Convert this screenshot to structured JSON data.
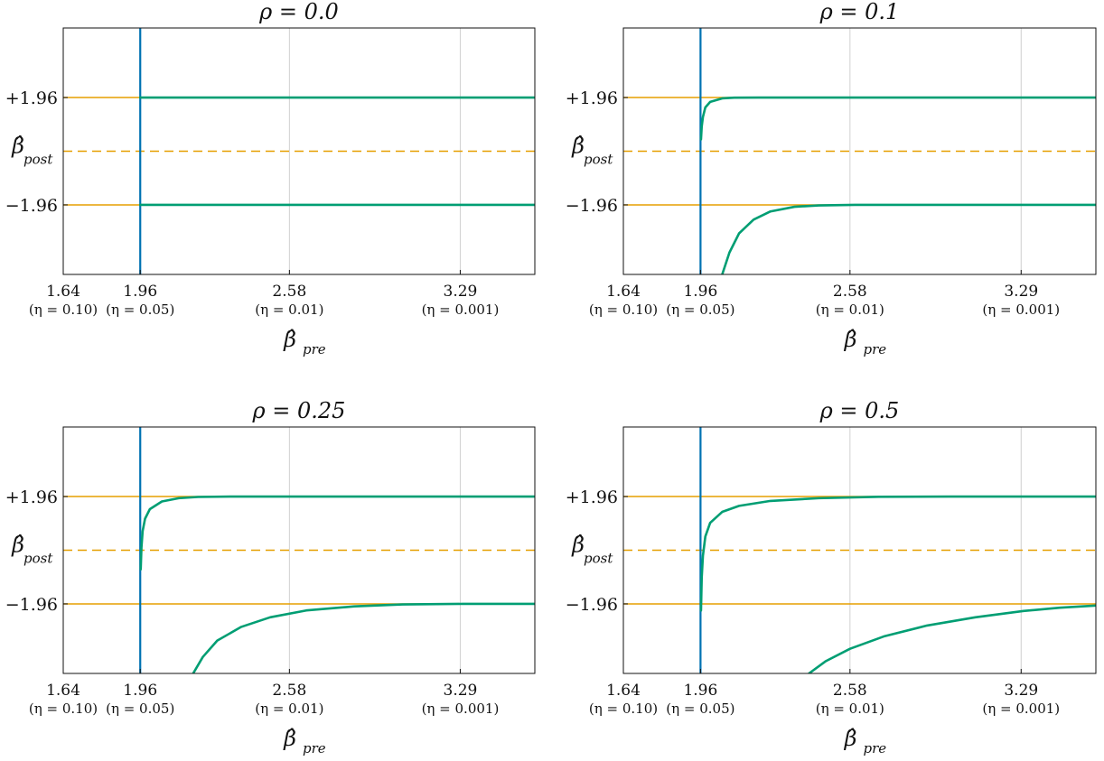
{
  "colors": {
    "boundary": "#E69F00",
    "curve": "#009E73",
    "threshold": "#0072B2",
    "grid": "#d0d0d0",
    "frame": "#111111"
  },
  "chart_data": [
    {
      "type": "line",
      "title": "ρ = 0.0",
      "rho": 0.0,
      "xlabel": "β̂",
      "xlabel_sub": "pre",
      "ylabel": "β̂",
      "ylabel_sub": "post",
      "xlim": [
        1.64,
        3.6
      ],
      "ylim": [
        -4.5,
        4.5
      ],
      "grid": "x",
      "x_ticks": [
        {
          "value": 1.64,
          "label": "1.64",
          "sub": "(η = 0.10)"
        },
        {
          "value": 1.96,
          "label": "1.96",
          "sub": "(η = 0.05)"
        },
        {
          "value": 2.58,
          "label": "2.58",
          "sub": "(η = 0.01)"
        },
        {
          "value": 3.29,
          "label": "3.29",
          "sub": "(η = 0.001)"
        }
      ],
      "y_ticks": [
        {
          "value": 1.96,
          "label": "+1.96"
        },
        {
          "value": -1.96,
          "label": "−1.96"
        }
      ],
      "horizontal_lines": [
        1.96,
        -1.96
      ],
      "dashed_center": 0,
      "vertical_line": 1.96,
      "series": [
        {
          "role": "upper",
          "points": [
            [
              1.96,
              1.96
            ],
            [
              2.2,
              1.96
            ],
            [
              2.58,
              1.96
            ],
            [
              3.0,
              1.96
            ],
            [
              3.6,
              1.96
            ]
          ]
        },
        {
          "role": "lower",
          "points": [
            [
              1.96,
              -1.96
            ],
            [
              2.2,
              -1.96
            ],
            [
              2.58,
              -1.96
            ],
            [
              3.0,
              -1.96
            ],
            [
              3.6,
              -1.96
            ]
          ]
        }
      ]
    },
    {
      "type": "line",
      "title": "ρ = 0.1",
      "rho": 0.1,
      "xlabel": "β̂",
      "xlabel_sub": "pre",
      "ylabel": "β̂",
      "ylabel_sub": "post",
      "xlim": [
        1.64,
        3.6
      ],
      "ylim": [
        -4.5,
        4.5
      ],
      "grid": "x",
      "x_ticks": [
        {
          "value": 1.64,
          "label": "1.64",
          "sub": "(η = 0.10)"
        },
        {
          "value": 1.96,
          "label": "1.96",
          "sub": "(η = 0.05)"
        },
        {
          "value": 2.58,
          "label": "2.58",
          "sub": "(η = 0.01)"
        },
        {
          "value": 3.29,
          "label": "3.29",
          "sub": "(η = 0.001)"
        }
      ],
      "y_ticks": [
        {
          "value": 1.96,
          "label": "+1.96"
        },
        {
          "value": -1.96,
          "label": "−1.96"
        }
      ],
      "horizontal_lines": [
        1.96,
        -1.96
      ],
      "dashed_center": 0,
      "vertical_line": 1.96,
      "series": [
        {
          "role": "upper",
          "points": [
            [
              1.962,
              0.43
            ],
            [
              1.965,
              0.9
            ],
            [
              1.97,
              1.25
            ],
            [
              1.98,
              1.6
            ],
            [
              2.0,
              1.8
            ],
            [
              2.05,
              1.93
            ],
            [
              2.1,
              1.955
            ],
            [
              2.2,
              1.96
            ],
            [
              3.6,
              1.96
            ]
          ]
        },
        {
          "role": "lower",
          "points": [
            [
              2.05,
              -4.5
            ],
            [
              2.08,
              -3.7
            ],
            [
              2.12,
              -3.0
            ],
            [
              2.18,
              -2.5
            ],
            [
              2.25,
              -2.2
            ],
            [
              2.35,
              -2.03
            ],
            [
              2.45,
              -1.98
            ],
            [
              2.6,
              -1.96
            ],
            [
              3.6,
              -1.96
            ]
          ]
        }
      ]
    },
    {
      "type": "line",
      "title": "ρ = 0.25",
      "rho": 0.25,
      "xlabel": "β̂",
      "xlabel_sub": "pre",
      "ylabel": "β̂",
      "ylabel_sub": "post",
      "xlim": [
        1.64,
        3.6
      ],
      "ylim": [
        -4.5,
        4.5
      ],
      "grid": "x",
      "x_ticks": [
        {
          "value": 1.64,
          "label": "1.64",
          "sub": "(η = 0.10)"
        },
        {
          "value": 1.96,
          "label": "1.96",
          "sub": "(η = 0.05)"
        },
        {
          "value": 2.58,
          "label": "2.58",
          "sub": "(η = 0.01)"
        },
        {
          "value": 3.29,
          "label": "3.29",
          "sub": "(η = 0.001)"
        }
      ],
      "y_ticks": [
        {
          "value": 1.96,
          "label": "+1.96"
        },
        {
          "value": -1.96,
          "label": "−1.96"
        }
      ],
      "horizontal_lines": [
        1.96,
        -1.96
      ],
      "dashed_center": 0,
      "vertical_line": 1.96,
      "series": [
        {
          "role": "upper",
          "points": [
            [
              1.962,
              -0.7
            ],
            [
              1.965,
              0.1
            ],
            [
              1.97,
              0.7
            ],
            [
              1.98,
              1.15
            ],
            [
              2.0,
              1.5
            ],
            [
              2.05,
              1.78
            ],
            [
              2.12,
              1.9
            ],
            [
              2.2,
              1.945
            ],
            [
              2.35,
              1.96
            ],
            [
              3.6,
              1.96
            ]
          ]
        },
        {
          "role": "lower",
          "points": [
            [
              2.18,
              -4.5
            ],
            [
              2.22,
              -3.9
            ],
            [
              2.28,
              -3.3
            ],
            [
              2.38,
              -2.8
            ],
            [
              2.5,
              -2.45
            ],
            [
              2.65,
              -2.2
            ],
            [
              2.85,
              -2.05
            ],
            [
              3.05,
              -1.98
            ],
            [
              3.3,
              -1.96
            ],
            [
              3.6,
              -1.96
            ]
          ]
        }
      ]
    },
    {
      "type": "line",
      "title": "ρ = 0.5",
      "rho": 0.5,
      "xlabel": "β̂",
      "xlabel_sub": "pre",
      "ylabel": "β̂",
      "ylabel_sub": "post",
      "xlim": [
        1.64,
        3.6
      ],
      "ylim": [
        -4.5,
        4.5
      ],
      "grid": "x",
      "x_ticks": [
        {
          "value": 1.64,
          "label": "1.64",
          "sub": "(η = 0.10)"
        },
        {
          "value": 1.96,
          "label": "1.96",
          "sub": "(η = 0.05)"
        },
        {
          "value": 2.58,
          "label": "2.58",
          "sub": "(η = 0.01)"
        },
        {
          "value": 3.29,
          "label": "3.29",
          "sub": "(η = 0.001)"
        }
      ],
      "y_ticks": [
        {
          "value": 1.96,
          "label": "+1.96"
        },
        {
          "value": -1.96,
          "label": "−1.96"
        }
      ],
      "horizontal_lines": [
        1.96,
        -1.96
      ],
      "dashed_center": 0,
      "vertical_line": 1.96,
      "series": [
        {
          "role": "upper",
          "points": [
            [
              1.962,
              -2.2
            ],
            [
              1.965,
              -1.0
            ],
            [
              1.97,
              -0.2
            ],
            [
              1.98,
              0.5
            ],
            [
              2.0,
              1.0
            ],
            [
              2.05,
              1.4
            ],
            [
              2.12,
              1.62
            ],
            [
              2.25,
              1.8
            ],
            [
              2.45,
              1.9
            ],
            [
              2.7,
              1.95
            ],
            [
              3.0,
              1.96
            ],
            [
              3.6,
              1.96
            ]
          ]
        },
        {
          "role": "lower",
          "points": [
            [
              2.41,
              -4.5
            ],
            [
              2.48,
              -4.05
            ],
            [
              2.58,
              -3.6
            ],
            [
              2.72,
              -3.15
            ],
            [
              2.9,
              -2.75
            ],
            [
              3.1,
              -2.45
            ],
            [
              3.3,
              -2.22
            ],
            [
              3.45,
              -2.1
            ],
            [
              3.6,
              -2.02
            ]
          ]
        }
      ]
    }
  ]
}
